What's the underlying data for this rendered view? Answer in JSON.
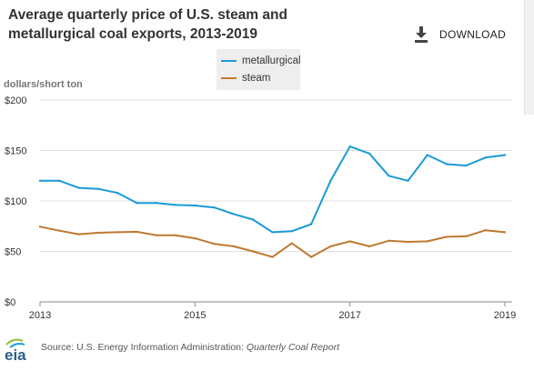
{
  "title": "Average quarterly price of U.S. steam and metallurgical coal exports, 2013-2019",
  "download": {
    "label": "DOWNLOAD",
    "icon": "download-icon"
  },
  "source": {
    "prefix": "Source: U.S. Energy Information Administration: ",
    "report": "Quarterly Coal Report"
  },
  "logo_text": "eia",
  "chart_data": {
    "type": "line",
    "title": "Average quarterly price of U.S. steam and metallurgical coal exports, 2013-2019",
    "ylabel": "dollars/short ton",
    "xlabel": "",
    "x_ticks": [
      "2013",
      "2015",
      "2017",
      "2019"
    ],
    "y_ticks": [
      "$0",
      "$50",
      "$100",
      "$150",
      "$200"
    ],
    "ylim": [
      0,
      200
    ],
    "xlim": [
      2013,
      2019
    ],
    "grid": "horizontal",
    "legend_position": "top-center",
    "x": [
      "2013-Q1",
      "2013-Q2",
      "2013-Q3",
      "2013-Q4",
      "2014-Q1",
      "2014-Q2",
      "2014-Q3",
      "2014-Q4",
      "2015-Q1",
      "2015-Q2",
      "2015-Q3",
      "2015-Q4",
      "2016-Q1",
      "2016-Q2",
      "2016-Q3",
      "2016-Q4",
      "2017-Q1",
      "2017-Q2",
      "2017-Q3",
      "2017-Q4",
      "2018-Q1",
      "2018-Q2",
      "2018-Q3",
      "2018-Q4",
      "2019-Q1"
    ],
    "series": [
      {
        "name": "metallurgical",
        "color": "#1a9bd7",
        "values": [
          120,
          120,
          113,
          112,
          108,
          98,
          98,
          96,
          95.5,
          93.5,
          87,
          81.5,
          69,
          70,
          77,
          120,
          154,
          147,
          125,
          120,
          145.5,
          136.5,
          135,
          143,
          145.5
        ]
      },
      {
        "name": "steam",
        "color": "#c0792f",
        "values": [
          74.5,
          70.5,
          67,
          68.5,
          69,
          69.5,
          66,
          66,
          63,
          57.5,
          55,
          50,
          44.5,
          58,
          44.5,
          55,
          60,
          55,
          60.5,
          59.5,
          60,
          64.5,
          65,
          71,
          69
        ]
      }
    ]
  }
}
